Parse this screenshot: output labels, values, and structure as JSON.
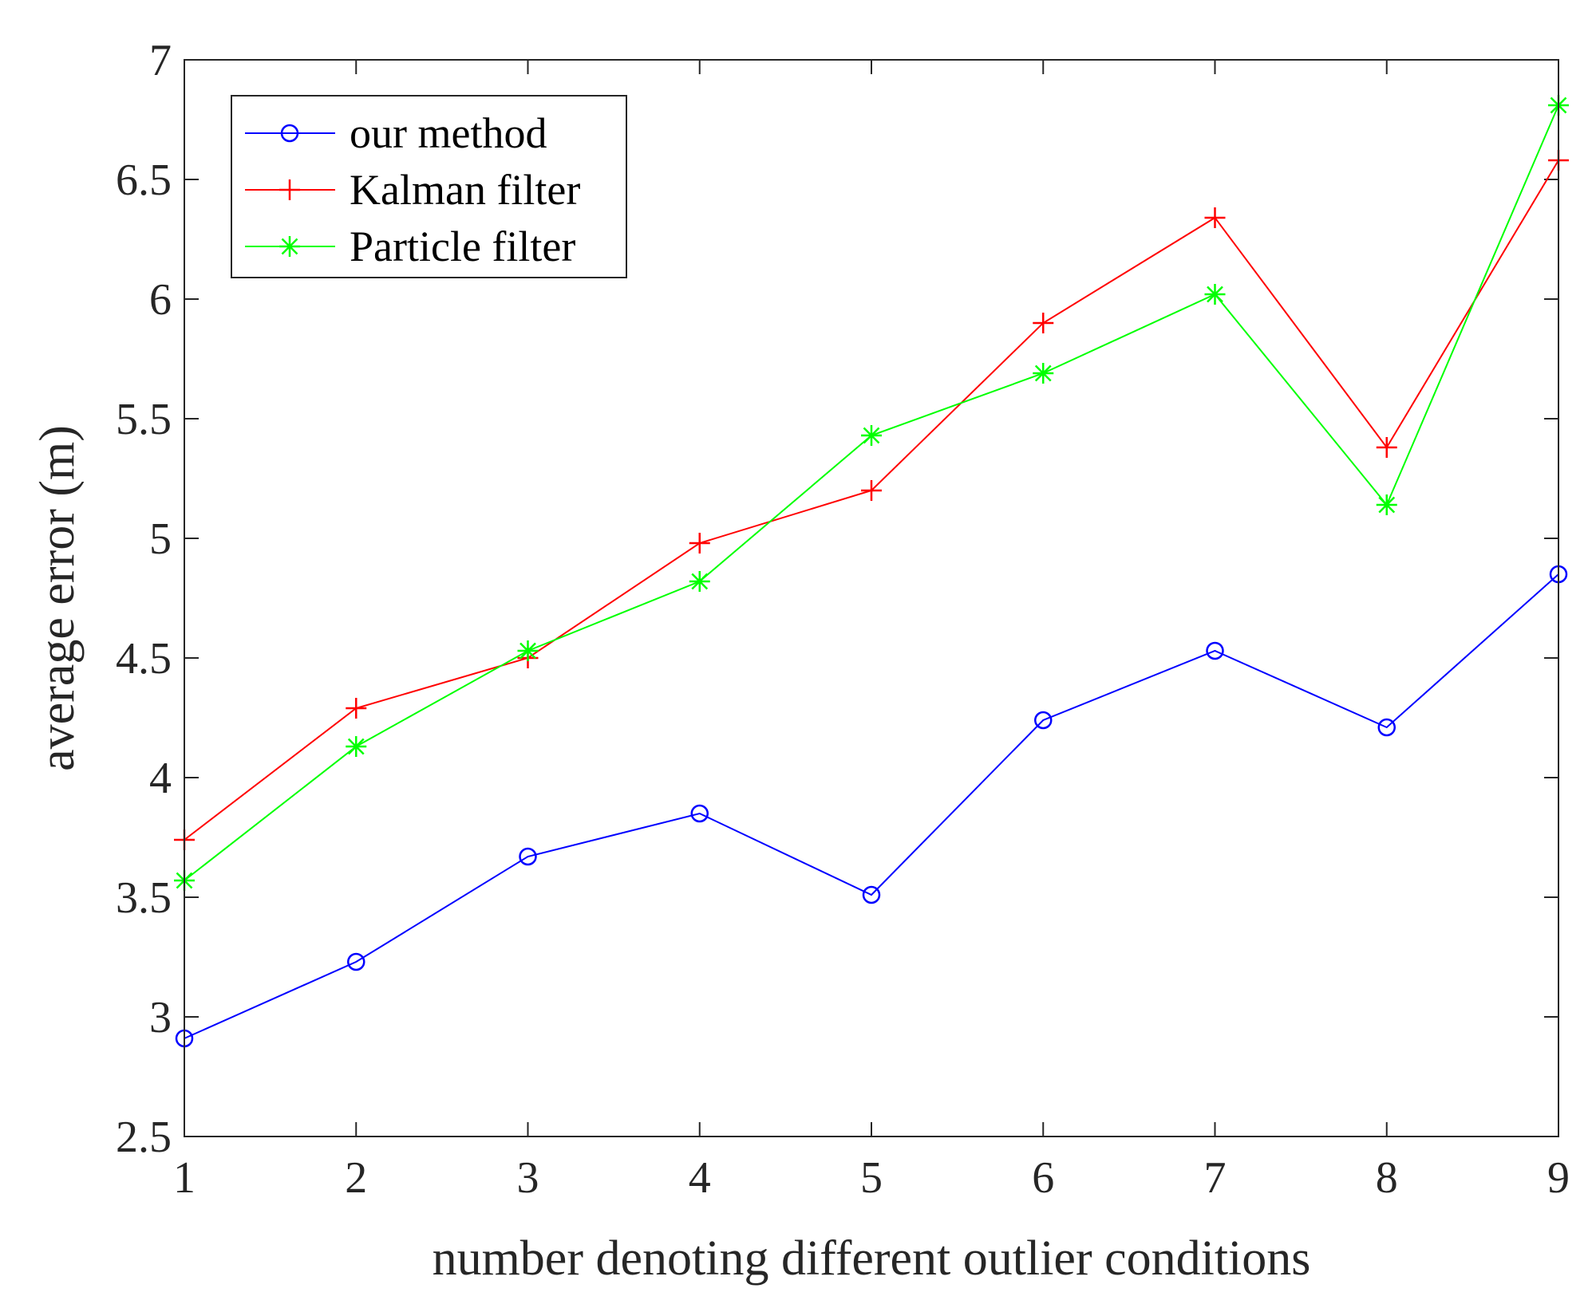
{
  "chart_data": {
    "type": "line",
    "x": [
      1,
      2,
      3,
      4,
      5,
      6,
      7,
      8,
      9
    ],
    "xlim": [
      1,
      9
    ],
    "ylim": [
      2.5,
      7
    ],
    "xticks": [
      "1",
      "2",
      "3",
      "4",
      "5",
      "6",
      "7",
      "8",
      "9"
    ],
    "yticks": [
      "2.5",
      "3",
      "3.5",
      "4",
      "4.5",
      "5",
      "5.5",
      "6",
      "6.5",
      "7"
    ],
    "xlabel": "number denoting different outlier conditions",
    "ylabel": "average error (m)",
    "grid": false,
    "legend_position": "top-left",
    "series": [
      {
        "name": "our method",
        "color": "#0000ff",
        "marker": "circle",
        "values": [
          2.91,
          3.23,
          3.67,
          3.85,
          3.51,
          4.24,
          4.53,
          4.21,
          4.85
        ]
      },
      {
        "name": "Kalman filter",
        "color": "#ff0000",
        "marker": "plus",
        "values": [
          3.74,
          4.29,
          4.5,
          4.98,
          5.2,
          5.9,
          6.34,
          5.38,
          6.58
        ]
      },
      {
        "name": "Particle filter",
        "color": "#00ff00",
        "marker": "asterisk",
        "values": [
          3.57,
          4.13,
          4.53,
          4.82,
          5.43,
          5.69,
          6.02,
          5.14,
          6.81
        ]
      }
    ]
  }
}
